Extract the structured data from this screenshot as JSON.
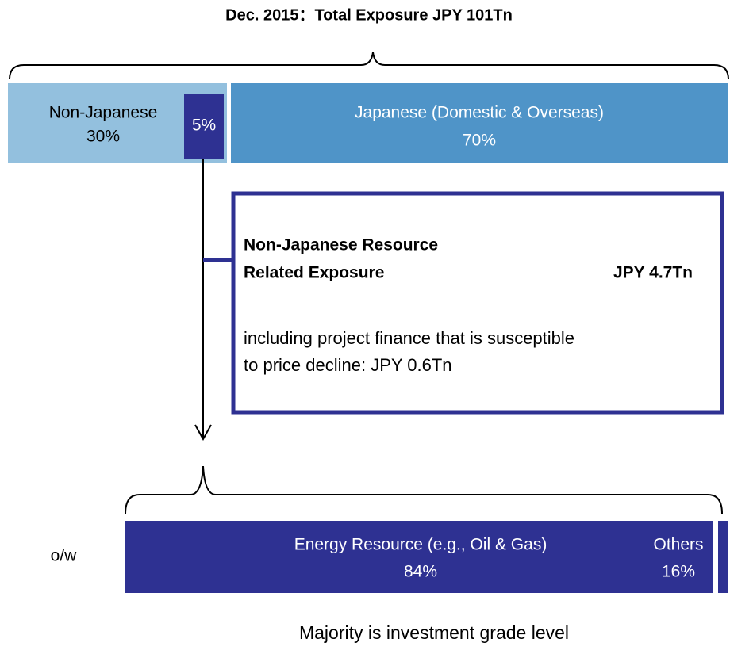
{
  "title": "Dec. 2015：Total Exposure JPY 101Tn",
  "top_bar": {
    "non_japanese": {
      "label": "Non-Japanese",
      "share": "30%"
    },
    "resource_share": "5%",
    "japanese": {
      "label": "Japanese (Domestic & Overseas)",
      "share": "70%"
    }
  },
  "detail_box": {
    "heading_lines": [
      "Non-Japanese Resource",
      "Related Exposure"
    ],
    "amount": "JPY 4.7Tn",
    "note_lines": [
      "including project finance that is susceptible",
      "to price decline: JPY 0.6Tn"
    ]
  },
  "breakdown": {
    "prefix": "o/w",
    "segments": [
      {
        "label": "Energy Resource (e.g., Oil & Gas)",
        "share": "84%"
      },
      {
        "label": "Others",
        "share": "16%"
      }
    ]
  },
  "footer": "Majority is investment grade level"
}
